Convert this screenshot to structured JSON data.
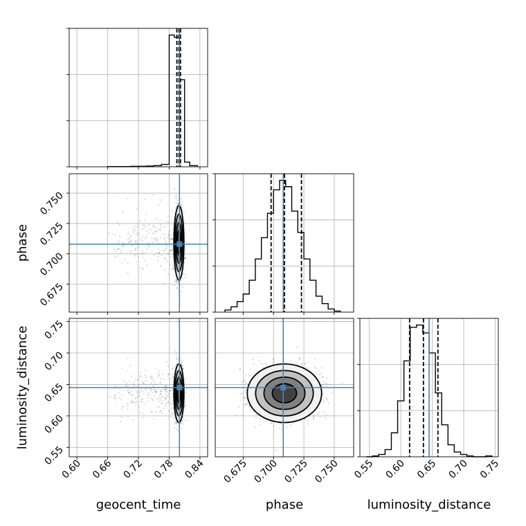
{
  "chart_data": {
    "type": "corner",
    "parameters": [
      "geocent_time",
      "phase",
      "luminosity_distance"
    ],
    "truths": {
      "geocent_time": 0.8,
      "phase": 0.708,
      "luminosity_distance": 0.645
    },
    "quantiles": {
      "geocent_time": [
        0.795,
        0.799,
        0.802
      ],
      "phase": [
        0.698,
        0.709,
        0.723
      ],
      "luminosity_distance": [
        0.614,
        0.636,
        0.659
      ]
    },
    "ranges": {
      "geocent_time": [
        0.585,
        0.855
      ],
      "phase": [
        0.652,
        0.766
      ],
      "luminosity_distance": [
        0.535,
        0.755
      ]
    },
    "ticks": {
      "geocent_time": [
        "0.60",
        "0.66",
        "0.72",
        "0.78",
        "0.84"
      ],
      "phase": [
        "0.675",
        "0.700",
        "0.725",
        "0.750"
      ],
      "luminosity_distance": [
        "0.55",
        "0.60",
        "0.65",
        "0.70",
        "0.75"
      ]
    },
    "histograms": {
      "geocent_time": {
        "edges": [
          0.66,
          0.675,
          0.69,
          0.705,
          0.72,
          0.735,
          0.75,
          0.765,
          0.78,
          0.79,
          0.8,
          0.81,
          0.82,
          0.835
        ],
        "counts": [
          1,
          1,
          1,
          2,
          2,
          3,
          5,
          10,
          560,
          550,
          370,
          20,
          5
        ]
      },
      "phase": {
        "edges": [
          0.66,
          0.665,
          0.67,
          0.675,
          0.68,
          0.685,
          0.69,
          0.695,
          0.7,
          0.705,
          0.71,
          0.715,
          0.72,
          0.725,
          0.73,
          0.735,
          0.74,
          0.745,
          0.75,
          0.755
        ],
        "counts": [
          2,
          5,
          10,
          17,
          30,
          50,
          70,
          93,
          115,
          124,
          118,
          95,
          75,
          50,
          30,
          15,
          8,
          3,
          1
        ]
      },
      "luminosity_distance": {
        "edges": [
          0.545,
          0.555,
          0.565,
          0.575,
          0.585,
          0.595,
          0.605,
          0.615,
          0.625,
          0.635,
          0.645,
          0.655,
          0.665,
          0.675,
          0.685,
          0.695,
          0.705,
          0.715,
          0.725,
          0.735,
          0.745
        ],
        "counts": [
          0,
          1,
          3,
          9,
          30,
          70,
          120,
          162,
          165,
          155,
          130,
          80,
          40,
          15,
          6,
          3,
          1,
          0,
          0,
          1
        ]
      }
    },
    "distributions": {
      "geocent_time": {
        "center": 0.799,
        "sd": 0.004,
        "tail_min": 0.66
      },
      "phase": {
        "center": 0.709,
        "sd": 0.0125
      },
      "luminosity_distance": {
        "center": 0.636,
        "sd": 0.019
      }
    },
    "grid": true
  }
}
